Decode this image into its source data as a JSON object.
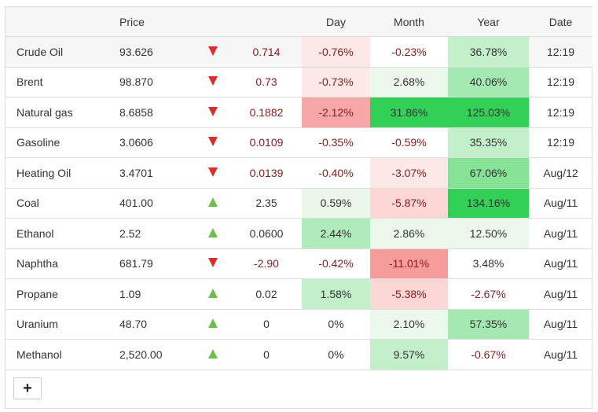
{
  "headers": {
    "name": "",
    "price": "Price",
    "arrow": "",
    "change": "",
    "day": "Day",
    "month": "Month",
    "year": "Year",
    "date": "Date"
  },
  "rows": [
    {
      "name": "Crude Oil",
      "price": "93.626",
      "dir": "down",
      "change": "0.714",
      "day": "-0.76%",
      "month": "-0.23%",
      "year": "36.78%",
      "date": "12:19"
    },
    {
      "name": "Brent",
      "price": "98.870",
      "dir": "down",
      "change": "0.73",
      "day": "-0.73%",
      "month": "2.68%",
      "year": "40.06%",
      "date": "12:19"
    },
    {
      "name": "Natural gas",
      "price": "8.6858",
      "dir": "down",
      "change": "0.1882",
      "day": "-2.12%",
      "month": "31.86%",
      "year": "125.03%",
      "date": "12:19"
    },
    {
      "name": "Gasoline",
      "price": "3.0606",
      "dir": "down",
      "change": "0.0109",
      "day": "-0.35%",
      "month": "-0.59%",
      "year": "35.35%",
      "date": "12:19"
    },
    {
      "name": "Heating Oil",
      "price": "3.4701",
      "dir": "down",
      "change": "0.0139",
      "day": "-0.40%",
      "month": "-3.07%",
      "year": "67.06%",
      "date": "Aug/12"
    },
    {
      "name": "Coal",
      "price": "401.00",
      "dir": "up",
      "change": "2.35",
      "day": "0.59%",
      "month": "-5.87%",
      "year": "134.16%",
      "date": "Aug/11"
    },
    {
      "name": "Ethanol",
      "price": "2.52",
      "dir": "up",
      "change": "0.0600",
      "day": "2.44%",
      "month": "2.86%",
      "year": "12.50%",
      "date": "Aug/11"
    },
    {
      "name": "Naphtha",
      "price": "681.79",
      "dir": "down",
      "change": "-2.90",
      "day": "-0.42%",
      "month": "-11.01%",
      "year": "3.48%",
      "date": "Aug/11"
    },
    {
      "name": "Propane",
      "price": "1.09",
      "dir": "up",
      "change": "0.02",
      "day": "1.58%",
      "month": "-5.38%",
      "year": "-2.67%",
      "date": "Aug/11"
    },
    {
      "name": "Uranium",
      "price": "48.70",
      "dir": "up",
      "change": "0",
      "day": "0%",
      "month": "2.10%",
      "year": "57.35%",
      "date": "Aug/11"
    },
    {
      "name": "Methanol",
      "price": "2,520.00",
      "dir": "up",
      "change": "0",
      "day": "0%",
      "month": "9.57%",
      "year": "-0.67%",
      "date": "Aug/11"
    }
  ],
  "cell_colors": {
    "day": [
      "#fde8e8",
      "#fde8e8",
      "#f7a7a7",
      "#ffffff",
      "#ffffff",
      "#eaf8ea",
      "#b0ecbb",
      "#ffffff",
      "#c3f0cb",
      "#ffffff",
      "#ffffff"
    ],
    "month": [
      "#ffffff",
      "#ebf9ed",
      "#33d058",
      "#ffffff",
      "#fde8e8",
      "#fdd6d6",
      "#ebf9ed",
      "#f79b9b",
      "#fdd6d6",
      "#ebf9ed",
      "#c3f0cb"
    ],
    "year": [
      "#c3f0cb",
      "#a5e9b2",
      "#33d058",
      "#c3f0cb",
      "#86e295",
      "#33d058",
      "#ebf9ed",
      "#ffffff",
      "#ffffff",
      "#a5e9b2",
      "#ffffff"
    ]
  },
  "add_button_label": "+"
}
